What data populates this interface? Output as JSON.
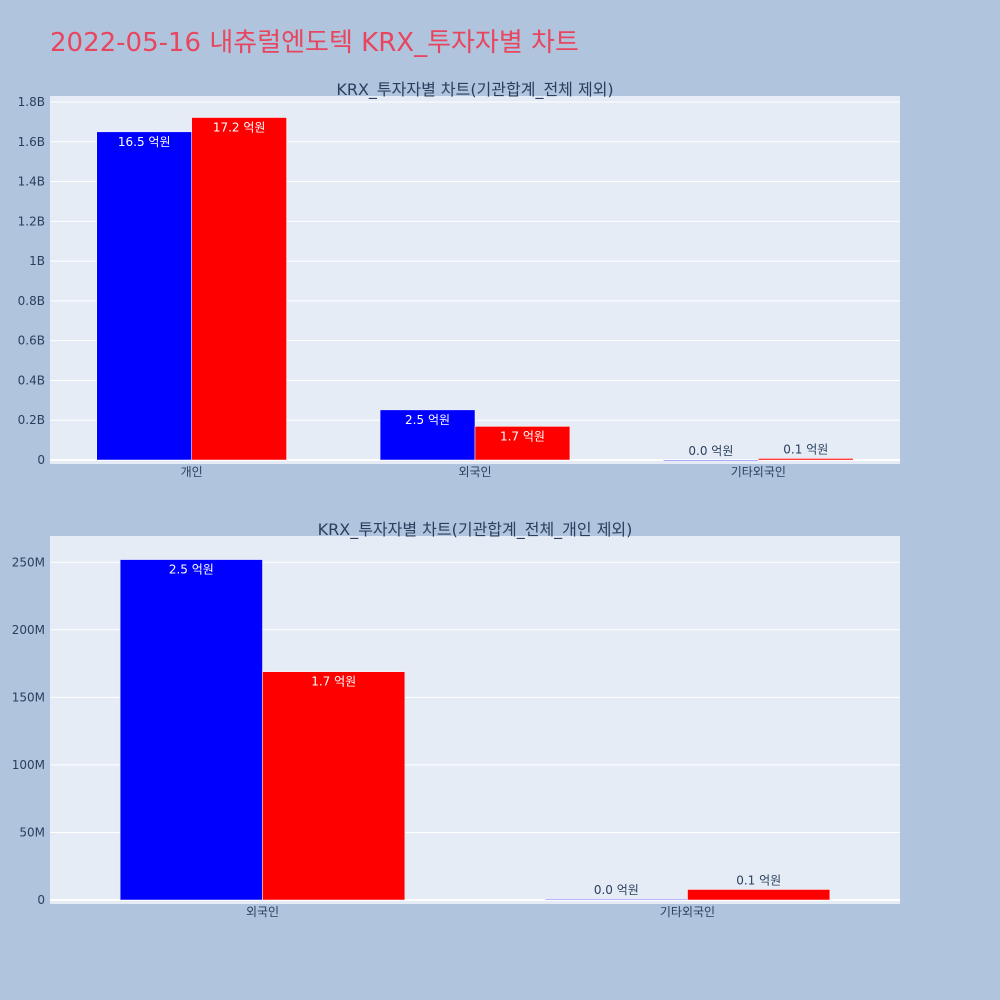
{
  "title": "2022-05-16 내츄럴엔도텍 KRX_투자자별 차트",
  "colors": {
    "page_bg": "#b0c4de",
    "plot_bg": "#e5ecf6",
    "buy": "#0000ff",
    "sell": "#ff0000",
    "title": "#e8465f"
  },
  "chart_data": [
    {
      "type": "bar",
      "title": "KRX_투자자별 차트(기관합계_전체 제외)",
      "categories": [
        "개인",
        "외국인",
        "기타외국인"
      ],
      "series": [
        {
          "values": [
            1650000000,
            252000000,
            600000
          ],
          "labels": [
            "16.5 억원",
            "2.5 억원",
            "0.0 억원"
          ]
        },
        {
          "values": [
            1722000000,
            169000000,
            7800000
          ],
          "labels": [
            "17.2 억원",
            "1.7 억원",
            "0.1 억원"
          ]
        }
      ],
      "ylim": [
        0,
        1800000000
      ],
      "yticks": [
        0,
        200000000,
        400000000,
        600000000,
        800000000,
        1000000000,
        1200000000,
        1400000000,
        1600000000,
        1800000000
      ],
      "ytick_labels": [
        "0",
        "0.2B",
        "0.4B",
        "0.6B",
        "0.8B",
        "1B",
        "1.2B",
        "1.4B",
        "1.6B",
        "1.8B"
      ],
      "grid": true
    },
    {
      "type": "bar",
      "title": "KRX_투자자별 차트(기관합계_전체_개인 제외)",
      "categories": [
        "외국인",
        "기타외국인"
      ],
      "series": [
        {
          "values": [
            252000000,
            600000
          ],
          "labels": [
            "2.5 억원",
            "0.0 억원"
          ]
        },
        {
          "values": [
            169000000,
            7800000
          ],
          "labels": [
            "1.7 억원",
            "0.1 억원"
          ]
        }
      ],
      "ylim": [
        0,
        265000000
      ],
      "yticks": [
        0,
        50000000,
        100000000,
        150000000,
        200000000,
        250000000
      ],
      "ytick_labels": [
        "0",
        "50M",
        "100M",
        "150M",
        "200M",
        "250M"
      ],
      "grid": true
    }
  ]
}
